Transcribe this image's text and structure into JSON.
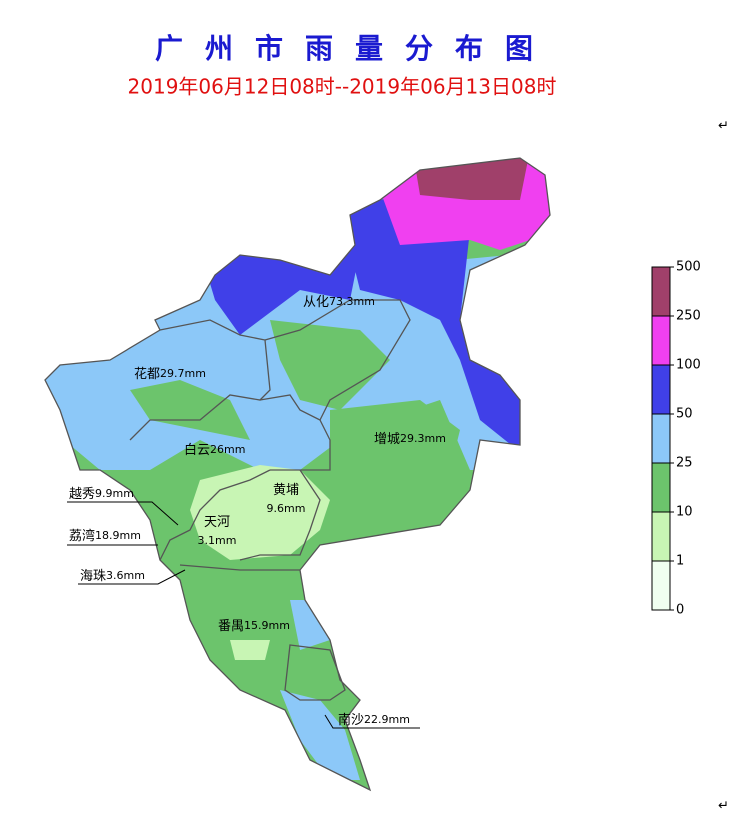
{
  "header": {
    "title": "广州市雨量分布图",
    "subtitle": "2019年06月12日08时--2019年06月13日08时"
  },
  "districts": [
    {
      "name": "从化",
      "rain": "73.3mm"
    },
    {
      "name": "花都",
      "rain": "29.7mm"
    },
    {
      "name": "白云",
      "rain": "26mm"
    },
    {
      "name": "增城",
      "rain": "29.3mm"
    },
    {
      "name": "黄埔",
      "rain": "9.6mm"
    },
    {
      "name": "天河",
      "rain": "3.1mm"
    },
    {
      "name": "越秀",
      "rain": "9.9mm"
    },
    {
      "name": "荔湾",
      "rain": "18.9mm"
    },
    {
      "name": "海珠",
      "rain": "3.6mm"
    },
    {
      "name": "番禺",
      "rain": "15.9mm"
    },
    {
      "name": "南沙",
      "rain": "22.9mm"
    }
  ],
  "legend": {
    "ticks": [
      0,
      1,
      10,
      25,
      50,
      100,
      250,
      500
    ],
    "colors": [
      "#f0fff0",
      "#c8f5b4",
      "#6cc46c",
      "#8cc8f8",
      "#4040e8",
      "#f040f0",
      "#a0406a"
    ]
  },
  "marks": [
    "↵",
    "↵"
  ]
}
